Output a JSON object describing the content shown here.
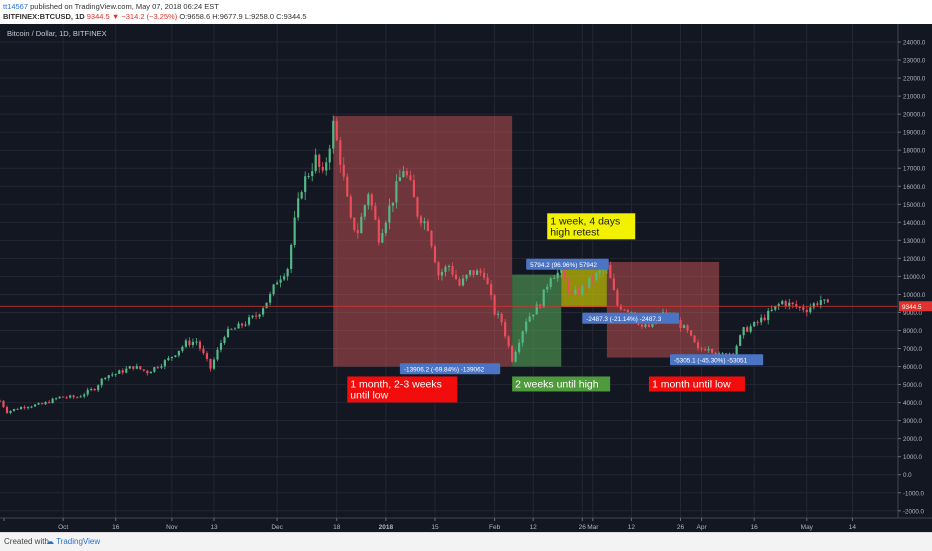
{
  "header": {
    "username": "tt14567",
    "published": "published on TradingView.com, May 07, 2018 06:24 EST",
    "symbol": "BITFINEX:BTCUSD, 1D",
    "last": "9344.5",
    "change": "−314.2 (−3.25%)",
    "open": "O:9658.6",
    "high": "H:9677.9",
    "low": "L:9258.0",
    "close": "C:9344.5"
  },
  "footer": {
    "created_with": "Created with",
    "brand": "TradingView"
  },
  "colors": {
    "up": "#53b987",
    "down": "#eb4d5c",
    "bg": "#131722",
    "red_zone": "rgba(235,95,95,0.42)",
    "green_zone": "rgba(90,175,90,0.55)",
    "yellow_zone": "rgba(205,200,0,0.68)",
    "note_red": "#f20c0c",
    "note_green": "#4f9a3c",
    "note_yellow": "#f2f200",
    "measure": "#4b74c4"
  },
  "chart_data": {
    "type": "candlestick",
    "title": "Bitcoin / Dollar, 1D, BITFINEX",
    "current_price_label": "9344.5",
    "y_ticks": [
      -2000,
      -1000,
      0,
      1000,
      2000,
      3000,
      4000,
      5000,
      6000,
      7000,
      8000,
      9000,
      10000,
      11000,
      12000,
      13000,
      14000,
      15000,
      16000,
      17000,
      18000,
      19000,
      20000,
      21000,
      22000,
      23000,
      24000
    ],
    "ylim": [
      -2400,
      25000
    ],
    "x_range": [
      "2017-09-13",
      "2018-05-27"
    ],
    "x_ticks": [
      {
        "date": "2017-10-01",
        "label": "Oct",
        "bold": false
      },
      {
        "date": "2017-10-16",
        "label": "16",
        "bold": false
      },
      {
        "date": "2017-11-01",
        "label": "Nov",
        "bold": false
      },
      {
        "date": "2017-11-13",
        "label": "13",
        "bold": false
      },
      {
        "date": "2017-12-01",
        "label": "Dec",
        "bold": false
      },
      {
        "date": "2017-12-18",
        "label": "18",
        "bold": false
      },
      {
        "date": "2018-01-01",
        "label": "2018",
        "bold": true
      },
      {
        "date": "2018-01-15",
        "label": "15",
        "bold": false
      },
      {
        "date": "2018-02-01",
        "label": "Feb",
        "bold": false
      },
      {
        "date": "2018-02-12",
        "label": "12",
        "bold": false
      },
      {
        "date": "2018-02-26",
        "label": "26",
        "bold": false
      },
      {
        "date": "2018-03-01",
        "label": "Mar",
        "bold": false
      },
      {
        "date": "2018-03-12",
        "label": "12",
        "bold": false
      },
      {
        "date": "2018-03-26",
        "label": "26",
        "bold": false
      },
      {
        "date": "2018-04-01",
        "label": "Apr",
        "bold": false
      },
      {
        "date": "2018-04-16",
        "label": "16",
        "bold": false
      },
      {
        "date": "2018-05-01",
        "label": "May",
        "bold": false
      },
      {
        "date": "2018-05-14",
        "label": "14",
        "bold": false
      }
    ],
    "price_path": [
      [
        "2017-09-13",
        4100
      ],
      [
        "2017-09-15",
        3500
      ],
      [
        "2017-09-20",
        3800
      ],
      [
        "2017-09-25",
        3900
      ],
      [
        "2017-09-30",
        4300
      ],
      [
        "2017-10-05",
        4300
      ],
      [
        "2017-10-10",
        4800
      ],
      [
        "2017-10-13",
        5500
      ],
      [
        "2017-10-16",
        5600
      ],
      [
        "2017-10-21",
        6000
      ],
      [
        "2017-10-25",
        5700
      ],
      [
        "2017-10-31",
        6400
      ],
      [
        "2017-11-05",
        7300
      ],
      [
        "2017-11-08",
        7400
      ],
      [
        "2017-11-12",
        5900
      ],
      [
        "2017-11-16",
        7800
      ],
      [
        "2017-11-20",
        8200
      ],
      [
        "2017-11-25",
        8800
      ],
      [
        "2017-11-29",
        9900
      ],
      [
        "2017-12-01",
        10800
      ],
      [
        "2017-12-04",
        11500
      ],
      [
        "2017-12-06",
        14000
      ],
      [
        "2017-12-08",
        16000
      ],
      [
        "2017-12-12",
        17500
      ],
      [
        "2017-12-14",
        16500
      ],
      [
        "2017-12-17",
        19400
      ],
      [
        "2017-12-19",
        17500
      ],
      [
        "2017-12-22",
        14000
      ],
      [
        "2017-12-24",
        13500
      ],
      [
        "2017-12-27",
        15700
      ],
      [
        "2017-12-30",
        13200
      ],
      [
        "2018-01-02",
        14800
      ],
      [
        "2018-01-06",
        17000
      ],
      [
        "2018-01-08",
        16000
      ],
      [
        "2018-01-10",
        14500
      ],
      [
        "2018-01-13",
        13800
      ],
      [
        "2018-01-16",
        11100
      ],
      [
        "2018-01-19",
        11600
      ],
      [
        "2018-01-22",
        10500
      ],
      [
        "2018-01-25",
        11200
      ],
      [
        "2018-01-29",
        11200
      ],
      [
        "2018-02-01",
        9000
      ],
      [
        "2018-02-03",
        8500
      ],
      [
        "2018-02-06",
        6400
      ],
      [
        "2018-02-10",
        8600
      ],
      [
        "2018-02-14",
        9500
      ],
      [
        "2018-02-17",
        11100
      ],
      [
        "2018-02-20",
        11200
      ],
      [
        "2018-02-23",
        9900
      ],
      [
        "2018-02-26",
        10300
      ],
      [
        "2018-03-01",
        10900
      ],
      [
        "2018-03-05",
        11500
      ],
      [
        "2018-03-08",
        9400
      ],
      [
        "2018-03-12",
        9100
      ],
      [
        "2018-03-15",
        8200
      ],
      [
        "2018-03-18",
        8200
      ],
      [
        "2018-03-21",
        8900
      ],
      [
        "2018-03-25",
        8500
      ],
      [
        "2018-03-28",
        7900
      ],
      [
        "2018-03-31",
        6900
      ],
      [
        "2018-04-03",
        7100
      ],
      [
        "2018-04-06",
        6600
      ],
      [
        "2018-04-10",
        6800
      ],
      [
        "2018-04-13",
        8000
      ],
      [
        "2018-04-16",
        8300
      ],
      [
        "2018-04-20",
        8900
      ],
      [
        "2018-04-24",
        9600
      ],
      [
        "2018-04-28",
        9300
      ],
      [
        "2018-05-01",
        9200
      ],
      [
        "2018-05-05",
        9700
      ],
      [
        "2018-05-07",
        9344.5
      ]
    ],
    "zones": [
      {
        "name": "drop-1",
        "start": "2017-12-17",
        "end": "2018-02-06",
        "top": 19900,
        "bottom": 6000,
        "color": "red_zone"
      },
      {
        "name": "rise",
        "start": "2018-02-06",
        "end": "2018-02-20",
        "top": 11100,
        "bottom": 6000,
        "color": "green_zone"
      },
      {
        "name": "retest",
        "start": "2018-02-20",
        "end": "2018-03-05",
        "top": 11800,
        "bottom": 9300,
        "color": "yellow_zone"
      },
      {
        "name": "drop-2",
        "start": "2018-03-05",
        "end": "2018-04-06",
        "top": 11800,
        "bottom": 6500,
        "color": "red_zone"
      }
    ],
    "measures": [
      {
        "name": "measure-drop-1",
        "text": "-13906.2 (-69.84%) -139062",
        "date": "2018-01-05",
        "price": 5850
      },
      {
        "name": "measure-rise",
        "text": "5794.2 (96.96%) 57942",
        "date": "2018-02-10",
        "price": 11650
      },
      {
        "name": "measure-retest",
        "text": "-2487.3 (-21.14%) -2487.3",
        "date": "2018-02-26",
        "price": 8650
      },
      {
        "name": "measure-drop-2",
        "text": "-5305.1 (-45.30%) -53051",
        "date": "2018-03-23",
        "price": 6350
      }
    ],
    "annotations": [
      {
        "name": "note-drop-1",
        "lines": [
          "1 month, 2-3 weeks",
          "until low"
        ],
        "date": "2017-12-21",
        "price": 5450,
        "color": "note_red",
        "text_color": "#ffffff",
        "w": 110
      },
      {
        "name": "note-rise",
        "lines": [
          "2 weeks until high"
        ],
        "date": "2018-02-06",
        "price": 5450,
        "color": "note_green",
        "text_color": "#ffffff",
        "w": 98
      },
      {
        "name": "note-retest",
        "lines": [
          "1 week, 4 days",
          "high retest"
        ],
        "date": "2018-02-16",
        "price": 14500,
        "color": "note_yellow",
        "text_color": "#222222",
        "w": 88
      },
      {
        "name": "note-drop-2",
        "lines": [
          "1 month until low"
        ],
        "date": "2018-03-17",
        "price": 5450,
        "color": "note_red",
        "text_color": "#ffffff",
        "w": 96
      }
    ]
  }
}
